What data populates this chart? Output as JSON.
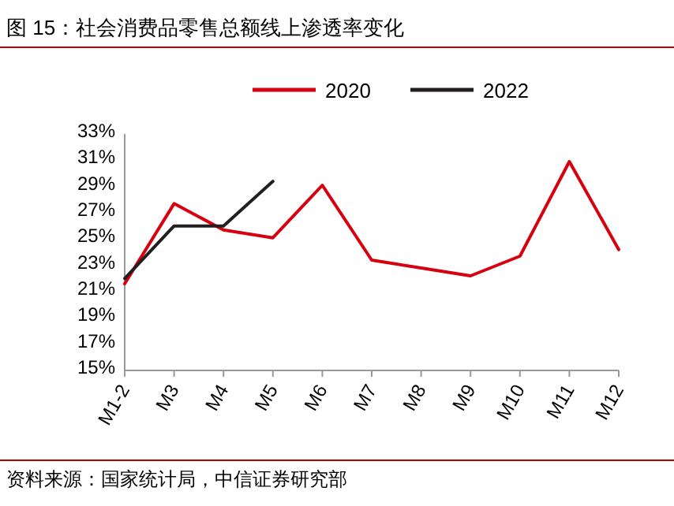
{
  "chart_data": {
    "type": "line",
    "title": "图 15：社会消费品零售总额线上渗透率变化",
    "categories": [
      "M1-2",
      "M3",
      "M4",
      "M5",
      "M6",
      "M7",
      "M8",
      "M9",
      "M10",
      "M11",
      "M12"
    ],
    "series": [
      {
        "name": "2020",
        "color": "#d7000f",
        "values": [
          21.6,
          27.7,
          25.7,
          25.1,
          29.1,
          23.4,
          22.8,
          22.2,
          23.7,
          30.9,
          24.2
        ]
      },
      {
        "name": "2022",
        "color": "#231f20",
        "values": [
          22.0,
          26.0,
          26.0,
          29.4,
          null,
          null,
          null,
          null,
          null,
          null,
          null
        ]
      }
    ],
    "ylim": [
      15,
      33
    ],
    "yticks": [
      {
        "value": 15,
        "label": "15%"
      },
      {
        "value": 17,
        "label": "17%"
      },
      {
        "value": 19,
        "label": "19%"
      },
      {
        "value": 21,
        "label": "21%"
      },
      {
        "value": 23,
        "label": "23%"
      },
      {
        "value": 25,
        "label": "25%"
      },
      {
        "value": 27,
        "label": "27%"
      },
      {
        "value": 29,
        "label": "29%"
      },
      {
        "value": 31,
        "label": "31%"
      },
      {
        "value": 33,
        "label": "33%"
      }
    ],
    "grid": false,
    "legend": "top",
    "marker": "none",
    "line_style": "solid",
    "annotations": [
      "资料来源：国家统计局，中信证券研究部"
    ]
  }
}
